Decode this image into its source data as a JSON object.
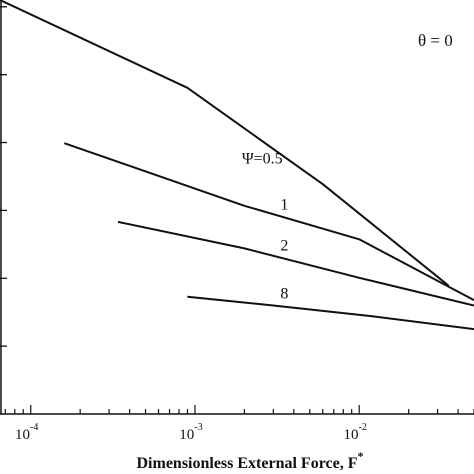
{
  "chart_data": {
    "type": "line",
    "xscale": "log",
    "xlim": [
      6.5e-05,
      0.05
    ],
    "ylim": [
      0,
      1
    ],
    "xlabel": "Dimensionless External Force, F",
    "xlabel_sup": "*",
    "ylabel": "",
    "grid": false,
    "annotation": "θ = 0",
    "x_ticks": [
      {
        "value": 0.0001,
        "base": "10",
        "exp": "-4"
      },
      {
        "value": 0.001,
        "base": "10",
        "exp": "-3"
      },
      {
        "value": 0.01,
        "base": "10",
        "exp": "-2"
      }
    ],
    "y_tick_count": 6,
    "series": [
      {
        "label": "Ψ=0.5",
        "x": [
          6.5e-05,
          0.0009,
          0.006,
          0.035
        ],
        "y": [
          1.0,
          0.788,
          0.555,
          0.31
        ]
      },
      {
        "label": "1",
        "x": [
          0.00016,
          0.002,
          0.01,
          0.05
        ],
        "y": [
          0.654,
          0.503,
          0.422,
          0.275
        ]
      },
      {
        "label": "2",
        "x": [
          0.00034,
          0.002,
          0.01,
          0.05
        ],
        "y": [
          0.464,
          0.4,
          0.329,
          0.262
        ]
      },
      {
        "label": "8",
        "x": [
          0.0009,
          0.003,
          0.012,
          0.05
        ],
        "y": [
          0.283,
          0.262,
          0.236,
          0.205
        ]
      }
    ]
  }
}
